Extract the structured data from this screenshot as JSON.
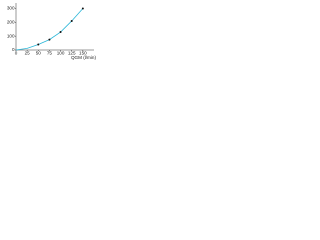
{
  "chart_data": {
    "type": "line",
    "x_label": "QGM (l/min)",
    "x": [
      0,
      25,
      50,
      75,
      100,
      125,
      150
    ],
    "series": [
      {
        "color": "#29b6d8",
        "values": [
          0,
          12,
          40,
          75,
          130,
          210,
          300
        ]
      }
    ],
    "points": {
      "color": "#111111",
      "x": [
        50,
        75,
        100,
        125,
        150
      ],
      "values": [
        40,
        75,
        130,
        210,
        300
      ]
    },
    "xlim": [
      0,
      175
    ],
    "xticks": [
      0,
      25,
      50,
      75,
      100,
      125,
      150
    ],
    "ylim": [
      0,
      340
    ],
    "yticks": [
      0,
      100,
      200,
      300
    ],
    "grid": false
  }
}
